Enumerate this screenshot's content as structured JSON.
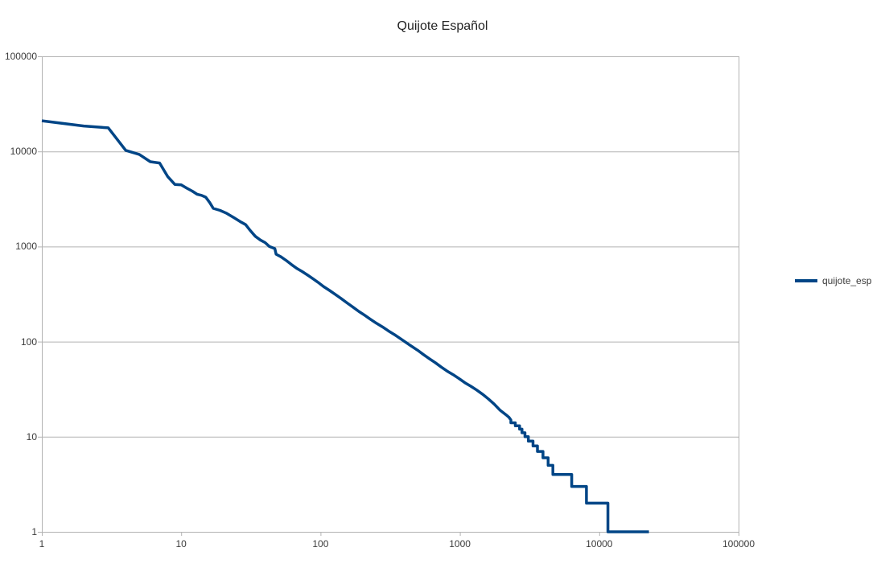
{
  "chart_data": {
    "type": "line",
    "title": "Quijote Español",
    "xlabel": "",
    "ylabel": "",
    "grid": "horizontal major gridlines only",
    "x_axis": {
      "scale": "log",
      "min": 1,
      "max": 100000,
      "tick_values": [
        1,
        10,
        100,
        1000,
        10000,
        100000
      ],
      "ticks": [
        "1",
        "10",
        "100",
        "1000",
        "10000",
        "100000"
      ]
    },
    "y_axis": {
      "scale": "log",
      "min": 1,
      "max": 100000,
      "tick_values": [
        1,
        10,
        100,
        1000,
        10000,
        100000
      ],
      "ticks": [
        "1",
        "10",
        "100",
        "1000",
        "10000",
        "100000"
      ]
    },
    "legend": {
      "position": "middle-right"
    },
    "series": [
      {
        "name": "quijote_esp",
        "color": "#004586",
        "points_format": [
          "rank",
          "frequency"
        ],
        "points": [
          [
            1,
            21000
          ],
          [
            2,
            18500
          ],
          [
            3,
            17700
          ],
          [
            4,
            10250
          ],
          [
            5,
            9300
          ],
          [
            6,
            7800
          ],
          [
            7,
            7550
          ],
          [
            8,
            5450
          ],
          [
            9,
            4500
          ],
          [
            10,
            4450
          ],
          [
            11,
            4100
          ],
          [
            12,
            3830
          ],
          [
            13,
            3550
          ],
          [
            14,
            3450
          ],
          [
            15,
            3300
          ],
          [
            16,
            2900
          ],
          [
            17,
            2520
          ],
          [
            19,
            2400
          ],
          [
            21,
            2250
          ],
          [
            24,
            2000
          ],
          [
            27,
            1800
          ],
          [
            29,
            1700
          ],
          [
            31,
            1500
          ],
          [
            34,
            1280
          ],
          [
            37,
            1170
          ],
          [
            40,
            1100
          ],
          [
            43,
            1000
          ],
          [
            47,
            950
          ],
          [
            48,
            830
          ],
          [
            52,
            780
          ],
          [
            57,
            710
          ],
          [
            62,
            645
          ],
          [
            68,
            585
          ],
          [
            74,
            545
          ],
          [
            81,
            500
          ],
          [
            88,
            460
          ],
          [
            96,
            420
          ],
          [
            105,
            380
          ],
          [
            116,
            345
          ],
          [
            127,
            315
          ],
          [
            140,
            285
          ],
          [
            155,
            255
          ],
          [
            170,
            232
          ],
          [
            188,
            208
          ],
          [
            207,
            190
          ],
          [
            228,
            172
          ],
          [
            252,
            156
          ],
          [
            278,
            143
          ],
          [
            306,
            130
          ],
          [
            338,
            119
          ],
          [
            372,
            108
          ],
          [
            410,
            98
          ],
          [
            452,
            89
          ],
          [
            498,
            81
          ],
          [
            549,
            73
          ],
          [
            605,
            66
          ],
          [
            667,
            60
          ],
          [
            735,
            54
          ],
          [
            810,
            49
          ],
          [
            893,
            45
          ],
          [
            984,
            41
          ],
          [
            1085,
            37
          ],
          [
            1196,
            34
          ],
          [
            1318,
            31
          ],
          [
            1453,
            28
          ],
          [
            1601,
            25
          ],
          [
            1765,
            22
          ],
          [
            1945,
            19
          ],
          [
            2144,
            17
          ],
          [
            2250,
            16
          ],
          [
            2323,
            15
          ],
          [
            2323,
            14
          ],
          [
            2500,
            14
          ],
          [
            2500,
            13
          ],
          [
            2680,
            13
          ],
          [
            2680,
            12
          ],
          [
            2790,
            12
          ],
          [
            2790,
            11
          ],
          [
            2930,
            11
          ],
          [
            2930,
            10
          ],
          [
            3100,
            10
          ],
          [
            3100,
            9
          ],
          [
            3350,
            9
          ],
          [
            3350,
            8
          ],
          [
            3600,
            8
          ],
          [
            3600,
            7
          ],
          [
            3950,
            7
          ],
          [
            3950,
            6
          ],
          [
            4300,
            6
          ],
          [
            4300,
            5
          ],
          [
            4650,
            5
          ],
          [
            4650,
            4
          ],
          [
            6350,
            4
          ],
          [
            6350,
            3
          ],
          [
            8100,
            3
          ],
          [
            8100,
            2
          ],
          [
            11550,
            2
          ],
          [
            11550,
            1
          ],
          [
            22750,
            1
          ]
        ]
      }
    ]
  },
  "colors": {
    "background": "#ffffff",
    "axis": "#b3b3b3",
    "grid": "#b3b3b3",
    "series": "#004586",
    "title_text": "#222222",
    "tick_text": "#3b3b3b",
    "legend_text": "#3b3b3b"
  }
}
